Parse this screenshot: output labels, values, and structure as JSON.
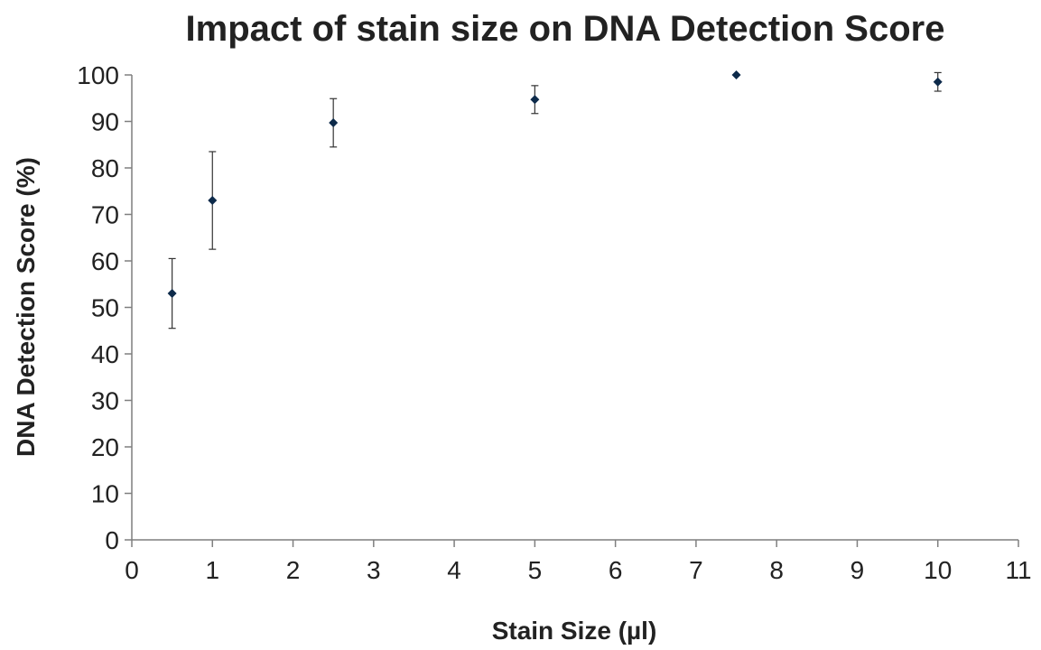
{
  "chart_data": {
    "type": "scatter",
    "title": "Impact of stain size on DNA Detection Score",
    "xlabel": "Stain Size (µl)",
    "ylabel": "DNA Detection Score (%)",
    "xlim": [
      0,
      11
    ],
    "ylim": [
      0,
      100
    ],
    "xticks": [
      0,
      1,
      2,
      3,
      4,
      5,
      6,
      7,
      8,
      9,
      10,
      11
    ],
    "yticks": [
      0,
      10,
      20,
      30,
      40,
      50,
      60,
      70,
      80,
      90,
      100
    ],
    "grid": false,
    "legend": "none",
    "marker_color": "#0d2a4a",
    "points": [
      {
        "x": 0.5,
        "y": 53,
        "err": 7.5
      },
      {
        "x": 1,
        "y": 73,
        "err": 10.5
      },
      {
        "x": 2.5,
        "y": 89.7,
        "err": 5.2
      },
      {
        "x": 5,
        "y": 94.7,
        "err": 3
      },
      {
        "x": 7.5,
        "y": 100,
        "err": 0
      },
      {
        "x": 10,
        "y": 98.5,
        "err": 2
      }
    ]
  }
}
